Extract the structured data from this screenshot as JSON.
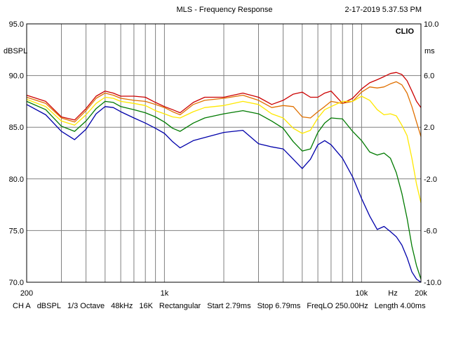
{
  "chart_data": {
    "type": "line",
    "title": "MLS - Frequency Response",
    "timestamp": "2-17-2019 5.37.53 PM",
    "brand": "CLIO",
    "ylabel": "dBSPL",
    "y2label": "ms",
    "xlabel_unit": "Hz",
    "xscale": "log",
    "xlim": [
      200,
      20000
    ],
    "ylim": [
      70,
      95
    ],
    "y2lim": [
      -10,
      10
    ],
    "x_tick_labels": [
      {
        "value": 200,
        "label": "200"
      },
      {
        "value": 1000,
        "label": "1k"
      },
      {
        "value": 10000,
        "label": "10k"
      },
      {
        "value": 20000,
        "label": "20k"
      }
    ],
    "y_tick_labels": [
      "95.0",
      "90.0",
      "85.0",
      "80.0",
      "75.0",
      "70.0"
    ],
    "y_ticks": [
      95,
      90,
      85,
      80,
      75,
      70
    ],
    "y2_tick_labels": [
      "10.0",
      "6.0",
      "2.0",
      "-2.0",
      "-6.0",
      "-10.0"
    ],
    "y2_ticks": [
      10,
      6,
      2,
      -2,
      -6,
      -10
    ],
    "series": [
      {
        "name": "red",
        "color": "#cc0000",
        "x": [
          200,
          250,
          300,
          350,
          400,
          450,
          500,
          550,
          600,
          700,
          800,
          900,
          1000,
          1100,
          1200,
          1400,
          1600,
          2000,
          2500,
          3000,
          3500,
          4000,
          4500,
          5000,
          5500,
          6000,
          6500,
          7000,
          8000,
          9000,
          10000,
          11000,
          12000,
          13000,
          14000,
          15000,
          16000,
          17000,
          18000,
          19000,
          20000
        ],
        "values": [
          88.1,
          87.5,
          86.0,
          85.7,
          86.8,
          88.0,
          88.5,
          88.3,
          88.0,
          88.0,
          87.9,
          87.4,
          87.0,
          86.7,
          86.4,
          87.4,
          87.9,
          87.9,
          88.3,
          87.9,
          87.2,
          87.6,
          88.2,
          88.4,
          87.9,
          87.9,
          88.3,
          88.5,
          87.3,
          87.8,
          88.7,
          89.3,
          89.6,
          89.9,
          90.2,
          90.3,
          90.1,
          89.5,
          88.5,
          87.5,
          86.9
        ]
      },
      {
        "name": "orange",
        "color": "#e07000",
        "x": [
          200,
          250,
          300,
          350,
          400,
          450,
          500,
          550,
          600,
          700,
          800,
          900,
          1000,
          1100,
          1200,
          1400,
          1600,
          2000,
          2500,
          3000,
          3500,
          4000,
          4500,
          5000,
          5500,
          6000,
          6500,
          7000,
          8000,
          9000,
          10000,
          11000,
          12000,
          13000,
          14000,
          15000,
          16000,
          17000,
          18000,
          19000,
          20000
        ],
        "values": [
          87.9,
          87.3,
          85.9,
          85.5,
          86.6,
          87.8,
          88.3,
          88.1,
          87.8,
          87.6,
          87.5,
          87.2,
          86.9,
          86.5,
          86.2,
          87.2,
          87.6,
          87.8,
          88.1,
          87.6,
          86.9,
          87.1,
          87.0,
          86.0,
          85.9,
          86.5,
          87.0,
          87.5,
          87.3,
          87.5,
          88.4,
          88.9,
          88.8,
          88.9,
          89.2,
          89.4,
          89.1,
          88.3,
          87.0,
          85.5,
          84.1
        ]
      },
      {
        "name": "yellow",
        "color": "#ffe800",
        "x": [
          200,
          250,
          300,
          350,
          400,
          450,
          500,
          550,
          600,
          700,
          800,
          900,
          1000,
          1100,
          1200,
          1400,
          1600,
          2000,
          2500,
          3000,
          3500,
          4000,
          4500,
          5000,
          5500,
          6000,
          6500,
          7000,
          8000,
          9000,
          10000,
          11000,
          12000,
          13000,
          14000,
          15000,
          16000,
          17000,
          18000,
          19000,
          20000
        ],
        "values": [
          87.7,
          87.0,
          85.6,
          85.2,
          86.2,
          87.3,
          87.9,
          87.8,
          87.5,
          87.3,
          87.1,
          86.6,
          86.3,
          86.0,
          85.9,
          86.5,
          86.9,
          87.1,
          87.5,
          87.2,
          86.3,
          85.9,
          84.9,
          84.4,
          84.7,
          85.9,
          86.7,
          87.0,
          87.5,
          87.5,
          88.0,
          87.6,
          86.7,
          86.2,
          86.3,
          86.1,
          85.2,
          84.2,
          82.0,
          79.5,
          77.7
        ]
      },
      {
        "name": "green",
        "color": "#007a00",
        "x": [
          200,
          250,
          300,
          350,
          400,
          450,
          500,
          550,
          600,
          700,
          800,
          900,
          1000,
          1100,
          1200,
          1400,
          1600,
          2000,
          2500,
          3000,
          3500,
          4000,
          4500,
          5000,
          5500,
          6000,
          6500,
          7000,
          8000,
          9000,
          10000,
          11000,
          12000,
          13000,
          14000,
          15000,
          16000,
          17000,
          18000,
          19000,
          20000
        ],
        "values": [
          87.5,
          86.7,
          85.1,
          84.6,
          85.6,
          86.8,
          87.5,
          87.4,
          87.0,
          86.7,
          86.4,
          86.0,
          85.5,
          84.9,
          84.6,
          85.4,
          85.9,
          86.3,
          86.6,
          86.3,
          85.6,
          84.9,
          83.6,
          82.7,
          82.9,
          84.5,
          85.4,
          85.9,
          85.8,
          84.6,
          83.7,
          82.6,
          82.3,
          82.5,
          82.0,
          80.6,
          78.6,
          76.2,
          73.5,
          71.6,
          70.3
        ]
      },
      {
        "name": "blue",
        "color": "#0000aa",
        "x": [
          200,
          250,
          300,
          350,
          400,
          450,
          500,
          550,
          600,
          700,
          800,
          900,
          1000,
          1100,
          1200,
          1400,
          1600,
          2000,
          2500,
          3000,
          3500,
          4000,
          4500,
          5000,
          5500,
          6000,
          6500,
          7000,
          8000,
          9000,
          10000,
          11000,
          12000,
          13000,
          14000,
          15000,
          16000,
          17000,
          18000,
          19000,
          20000
        ],
        "values": [
          87.2,
          86.2,
          84.6,
          83.8,
          84.8,
          86.3,
          87.0,
          86.9,
          86.5,
          85.9,
          85.4,
          84.9,
          84.4,
          83.6,
          83.0,
          83.7,
          84.0,
          84.5,
          84.7,
          83.4,
          83.1,
          82.9,
          81.9,
          81.0,
          81.9,
          83.3,
          83.7,
          83.3,
          82.0,
          80.2,
          78.1,
          76.4,
          75.1,
          75.4,
          74.9,
          74.4,
          73.6,
          72.4,
          71.0,
          70.3,
          70.0
        ]
      }
    ]
  },
  "footer": {
    "items": [
      "CH A",
      "dBSPL",
      "1/3 Octave",
      "48kHz",
      "16K",
      "Rectangular",
      "Start 2.79ms",
      "Stop 6.79ms",
      "FreqLO 250.00Hz",
      "Length 4.00ms"
    ]
  }
}
